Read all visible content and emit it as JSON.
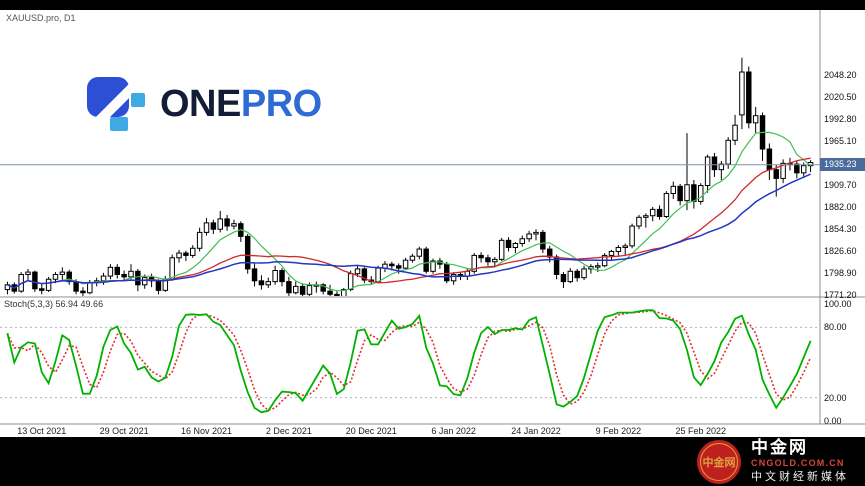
{
  "window": {
    "symbol_label": "XAUUSD.pro, D1"
  },
  "logo": {
    "one": "ONE",
    "pro": "PRO"
  },
  "colors": {
    "onepro_dark_text": "#141d38",
    "onepro_blue_text": "#2e6bd4",
    "onepro_mark_blue": "#2c4fd6",
    "onepro_mark_light": "#3fa9e6",
    "ma_green": "#3fbf55",
    "ma_red": "#cf2a2a",
    "ma_blue": "#2336c8",
    "stoch_main": "#00b200",
    "stoch_signal": "#e03030",
    "bid_line": "#7f93ad",
    "bid_tag_bg": "#4a6b9b",
    "candle_up": "#ffffff",
    "candle_down": "#000000",
    "candle_stroke": "#000000",
    "panel_border": "#8f8f8f",
    "level_dash": "#b0b0c0",
    "cngold_red": "#c01f1f",
    "cngold_gold": "#d9a43f",
    "cngold_domain_red": "#d8453a"
  },
  "chart_data": {
    "type": "candlestick",
    "symbol": "XAUUSD.pro",
    "timeframe": "D1",
    "price_ticks": [
      "2048.20",
      "2020.50",
      "1992.80",
      "1965.10",
      "1937.40",
      "1909.70",
      "1882.00",
      "1854.30",
      "1826.60",
      "1798.90",
      "1771.20"
    ],
    "price_axis_range": [
      1765,
      2080
    ],
    "bid": {
      "label": "1935.23",
      "value": 1935.23
    },
    "x_labels": [
      {
        "label": "13 Oct 2021",
        "index": 5
      },
      {
        "label": "29 Oct 2021",
        "index": 17
      },
      {
        "label": "16 Nov 2021",
        "index": 29
      },
      {
        "label": "2 Dec 2021",
        "index": 41
      },
      {
        "label": "20 Dec 2021",
        "index": 53
      },
      {
        "label": "6 Jan 2022",
        "index": 65
      },
      {
        "label": "24 Jan 2022",
        "index": 77
      },
      {
        "label": "9 Feb 2022",
        "index": 89
      },
      {
        "label": "25 Feb 2022",
        "index": 101
      }
    ],
    "ma_periods": {
      "green": 8,
      "red": 20,
      "blue": 28
    },
    "stochastic": {
      "label": "Stoch(5,3,3) 56.94 49.66",
      "params": [
        5,
        3,
        3
      ],
      "k": 56.94,
      "d": 49.66,
      "ticks": [
        "100.00",
        "80.00",
        "20.00",
        "0.00"
      ],
      "levels": [
        80,
        20
      ],
      "range": [
        0,
        100
      ]
    },
    "candles": [
      [
        1778,
        1788,
        1772,
        1784
      ],
      [
        1784,
        1787,
        1773,
        1776
      ],
      [
        1776,
        1800,
        1774,
        1797
      ],
      [
        1797,
        1804,
        1790,
        1800
      ],
      [
        1800,
        1802,
        1775,
        1779
      ],
      [
        1779,
        1786,
        1772,
        1777
      ],
      [
        1777,
        1794,
        1775,
        1791
      ],
      [
        1791,
        1800,
        1786,
        1797
      ],
      [
        1797,
        1806,
        1790,
        1800
      ],
      [
        1800,
        1803,
        1784,
        1788
      ],
      [
        1788,
        1791,
        1772,
        1776
      ],
      [
        1776,
        1781,
        1770,
        1774
      ],
      [
        1774,
        1790,
        1772,
        1787
      ],
      [
        1787,
        1793,
        1782,
        1789
      ],
      [
        1789,
        1799,
        1784,
        1795
      ],
      [
        1795,
        1810,
        1791,
        1806
      ],
      [
        1806,
        1810,
        1792,
        1797
      ],
      [
        1797,
        1802,
        1789,
        1794
      ],
      [
        1794,
        1810,
        1791,
        1801
      ],
      [
        1801,
        1804,
        1776,
        1784
      ],
      [
        1784,
        1797,
        1779,
        1793
      ],
      [
        1793,
        1798,
        1781,
        1789
      ],
      [
        1789,
        1791,
        1772,
        1777
      ],
      [
        1777,
        1795,
        1775,
        1791
      ],
      [
        1791,
        1822,
        1789,
        1818
      ],
      [
        1818,
        1828,
        1812,
        1824
      ],
      [
        1824,
        1827,
        1814,
        1821
      ],
      [
        1821,
        1834,
        1818,
        1830
      ],
      [
        1830,
        1856,
        1826,
        1850
      ],
      [
        1850,
        1868,
        1846,
        1862
      ],
      [
        1862,
        1866,
        1848,
        1854
      ],
      [
        1854,
        1877,
        1850,
        1867
      ],
      [
        1867,
        1872,
        1852,
        1858
      ],
      [
        1858,
        1866,
        1854,
        1861
      ],
      [
        1861,
        1864,
        1838,
        1845
      ],
      [
        1845,
        1848,
        1798,
        1804
      ],
      [
        1804,
        1812,
        1782,
        1789
      ],
      [
        1789,
        1796,
        1778,
        1784
      ],
      [
        1784,
        1793,
        1780,
        1788
      ],
      [
        1788,
        1808,
        1784,
        1802
      ],
      [
        1802,
        1805,
        1782,
        1788
      ],
      [
        1788,
        1794,
        1770,
        1774
      ],
      [
        1774,
        1788,
        1772,
        1782
      ],
      [
        1782,
        1786,
        1768,
        1772
      ],
      [
        1772,
        1787,
        1770,
        1783
      ],
      [
        1783,
        1788,
        1774,
        1784
      ],
      [
        1784,
        1786,
        1772,
        1776
      ],
      [
        1776,
        1784,
        1769,
        1772
      ],
      [
        1772,
        1776,
        1767,
        1769
      ],
      [
        1769,
        1780,
        1768,
        1778
      ],
      [
        1778,
        1802,
        1776,
        1798
      ],
      [
        1798,
        1808,
        1794,
        1804
      ],
      [
        1804,
        1806,
        1786,
        1790
      ],
      [
        1790,
        1795,
        1784,
        1788
      ],
      [
        1788,
        1808,
        1786,
        1805
      ],
      [
        1805,
        1814,
        1800,
        1810
      ],
      [
        1810,
        1813,
        1802,
        1808
      ],
      [
        1808,
        1811,
        1798,
        1805
      ],
      [
        1805,
        1818,
        1803,
        1815
      ],
      [
        1815,
        1823,
        1812,
        1820
      ],
      [
        1820,
        1832,
        1816,
        1829
      ],
      [
        1829,
        1832,
        1798,
        1801
      ],
      [
        1801,
        1817,
        1798,
        1814
      ],
      [
        1814,
        1818,
        1804,
        1810
      ],
      [
        1810,
        1813,
        1786,
        1789
      ],
      [
        1789,
        1800,
        1784,
        1797
      ],
      [
        1797,
        1800,
        1790,
        1795
      ],
      [
        1795,
        1804,
        1790,
        1801
      ],
      [
        1801,
        1824,
        1798,
        1821
      ],
      [
        1821,
        1825,
        1812,
        1818
      ],
      [
        1818,
        1822,
        1808,
        1813
      ],
      [
        1813,
        1819,
        1806,
        1816
      ],
      [
        1816,
        1843,
        1814,
        1840
      ],
      [
        1840,
        1844,
        1826,
        1831
      ],
      [
        1831,
        1838,
        1824,
        1836
      ],
      [
        1836,
        1846,
        1832,
        1842
      ],
      [
        1842,
        1852,
        1838,
        1848
      ],
      [
        1848,
        1854,
        1840,
        1850
      ],
      [
        1850,
        1853,
        1824,
        1829
      ],
      [
        1829,
        1833,
        1812,
        1819
      ],
      [
        1819,
        1822,
        1791,
        1797
      ],
      [
        1797,
        1800,
        1780,
        1788
      ],
      [
        1788,
        1805,
        1786,
        1801
      ],
      [
        1801,
        1804,
        1788,
        1793
      ],
      [
        1793,
        1808,
        1790,
        1804
      ],
      [
        1804,
        1810,
        1798,
        1807
      ],
      [
        1807,
        1812,
        1800,
        1808
      ],
      [
        1808,
        1824,
        1806,
        1821
      ],
      [
        1821,
        1828,
        1815,
        1826
      ],
      [
        1826,
        1834,
        1821,
        1831
      ],
      [
        1831,
        1836,
        1820,
        1833
      ],
      [
        1833,
        1861,
        1830,
        1858
      ],
      [
        1858,
        1872,
        1854,
        1869
      ],
      [
        1869,
        1874,
        1856,
        1871
      ],
      [
        1871,
        1882,
        1864,
        1879
      ],
      [
        1879,
        1884,
        1866,
        1870
      ],
      [
        1870,
        1902,
        1868,
        1899
      ],
      [
        1899,
        1914,
        1892,
        1908
      ],
      [
        1908,
        1911,
        1884,
        1890
      ],
      [
        1890,
        1975,
        1878,
        1910
      ],
      [
        1910,
        1916,
        1880,
        1889
      ],
      [
        1889,
        1912,
        1885,
        1909
      ],
      [
        1909,
        1948,
        1900,
        1945
      ],
      [
        1945,
        1950,
        1920,
        1929
      ],
      [
        1929,
        1940,
        1916,
        1936
      ],
      [
        1936,
        1970,
        1930,
        1966
      ],
      [
        1966,
        1998,
        1960,
        1985
      ],
      [
        1998,
        2070,
        1980,
        2052
      ],
      [
        2052,
        2059,
        1981,
        1988
      ],
      [
        1988,
        2008,
        1975,
        1997
      ],
      [
        1997,
        2001,
        1940,
        1955
      ],
      [
        1955,
        1962,
        1916,
        1929
      ],
      [
        1929,
        1935,
        1895,
        1918
      ],
      [
        1918,
        1942,
        1912,
        1937
      ],
      [
        1937,
        1944,
        1928,
        1936
      ],
      [
        1936,
        1940,
        1918,
        1925
      ],
      [
        1925,
        1938,
        1920,
        1934
      ],
      [
        1934,
        1941,
        1926,
        1938
      ]
    ]
  },
  "watermark": {
    "circle_text": "中金网",
    "name": "中金网",
    "domain": "CNGOLD.COM.CN",
    "tagline": "中文财经新媒体"
  }
}
